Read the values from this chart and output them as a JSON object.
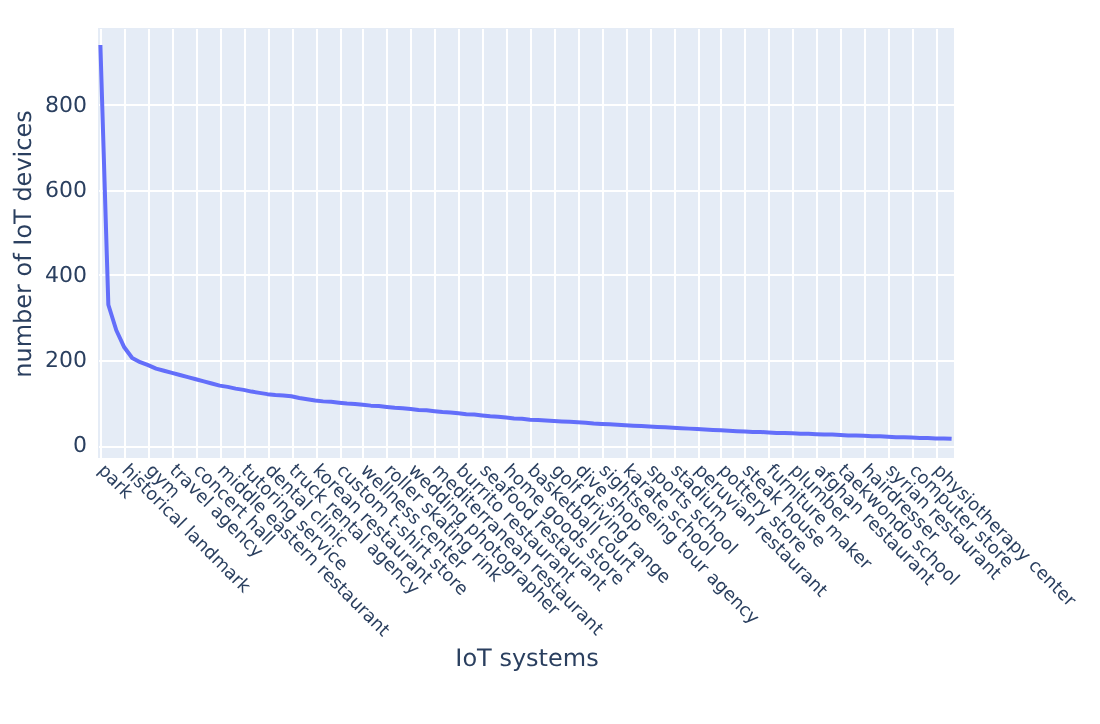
{
  "chart_data": {
    "type": "line",
    "xlabel": "IoT systems",
    "ylabel": "number of IoT devices",
    "categories": [
      "park",
      null,
      null,
      "historical landmark",
      null,
      null,
      "gym",
      null,
      null,
      "travel agency",
      null,
      null,
      "concert hall",
      null,
      null,
      "middle eastern restaurant",
      null,
      null,
      "tutoring service",
      null,
      null,
      "dental clinic",
      null,
      null,
      "truck rental agency",
      null,
      null,
      "korean restaurant",
      null,
      null,
      "custom t-shirt store",
      null,
      null,
      "wellness center",
      null,
      null,
      "roller skating rink",
      null,
      null,
      "wedding photographer",
      null,
      null,
      "mediterranean restaurant",
      null,
      null,
      "burrito restaurant",
      null,
      null,
      "seafood restaurant",
      null,
      null,
      "home goods store",
      null,
      null,
      "basketball court",
      null,
      null,
      "golf driving range",
      null,
      null,
      "dive shop",
      null,
      null,
      "sightseeing tour agency",
      null,
      null,
      "karate school",
      null,
      null,
      "sports school",
      null,
      null,
      "stadium",
      null,
      null,
      "peruvian restaurant",
      null,
      null,
      "pottery store",
      null,
      null,
      "steak house",
      null,
      null,
      "furniture maker",
      null,
      null,
      "plumber",
      null,
      null,
      "afghan restaurant",
      null,
      null,
      "taekwondo school",
      null,
      null,
      "hairdresser",
      null,
      null,
      "syrian restaurant",
      null,
      null,
      "computer store",
      null,
      null,
      "physiotherapy center",
      null,
      null
    ],
    "series": [
      {
        "color": "#636efa",
        "values": [
          940,
          330,
          270,
          230,
          205,
          195,
          188,
          180,
          175,
          170,
          165,
          160,
          155,
          150,
          145,
          140,
          137,
          133,
          130,
          126,
          123,
          120,
          118,
          117,
          115,
          111,
          108,
          105,
          103,
          102,
          100,
          98,
          97,
          95,
          93,
          92,
          90,
          88,
          87,
          85,
          83,
          82,
          80,
          78,
          77,
          75,
          73,
          72,
          70,
          68,
          67,
          65,
          63,
          62,
          60,
          59,
          58,
          57,
          56,
          55,
          54,
          53,
          51,
          50,
          49,
          48,
          47,
          46,
          45,
          44,
          43,
          42,
          41,
          40,
          39,
          38,
          37,
          36,
          35,
          34,
          33,
          32,
          31,
          31,
          30,
          29,
          29,
          28,
          27,
          27,
          26,
          25,
          25,
          24,
          23,
          23,
          22,
          21,
          21,
          20,
          19,
          19,
          18,
          17,
          17,
          16,
          16,
          15
        ]
      }
    ],
    "ylim": [
      -30,
      980
    ],
    "yticks": [
      0,
      200,
      400,
      600,
      800
    ],
    "grid": true,
    "marker": "none",
    "line_style": "solid"
  }
}
